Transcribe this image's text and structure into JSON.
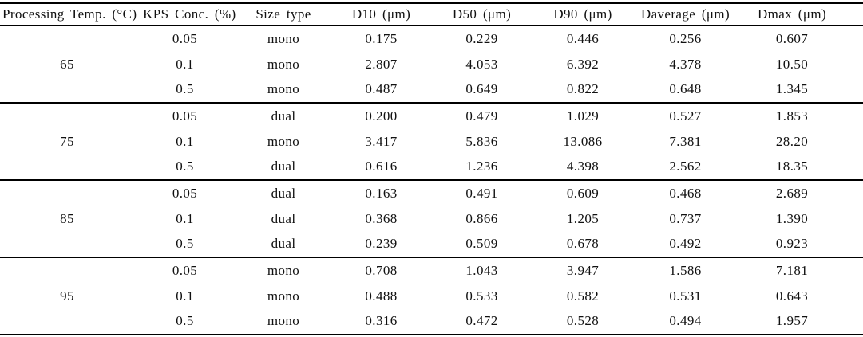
{
  "colors": {
    "background": "#ffffff",
    "text": "#111111",
    "rule": "#000000"
  },
  "table": {
    "columns": [
      "Processing Temp. (°C)",
      "KPS Conc. (%)",
      "Size type",
      "D10 (μm)",
      "D50 (μm)",
      "D90 (μm)",
      "Daverage (μm)",
      "Dmax (μm)"
    ],
    "groups": [
      {
        "temp": "65",
        "rows": [
          {
            "kps": "0.05",
            "size_type": "mono",
            "d10": "0.175",
            "d50": "0.229",
            "d90": "0.446",
            "daverage": "0.256",
            "dmax": "0.607"
          },
          {
            "kps": "0.1",
            "size_type": "mono",
            "d10": "2.807",
            "d50": "4.053",
            "d90": "6.392",
            "daverage": "4.378",
            "dmax": "10.50"
          },
          {
            "kps": "0.5",
            "size_type": "mono",
            "d10": "0.487",
            "d50": "0.649",
            "d90": "0.822",
            "daverage": "0.648",
            "dmax": "1.345"
          }
        ]
      },
      {
        "temp": "75",
        "rows": [
          {
            "kps": "0.05",
            "size_type": "dual",
            "d10": "0.200",
            "d50": "0.479",
            "d90": "1.029",
            "daverage": "0.527",
            "dmax": "1.853"
          },
          {
            "kps": "0.1",
            "size_type": "mono",
            "d10": "3.417",
            "d50": "5.836",
            "d90": "13.086",
            "daverage": "7.381",
            "dmax": "28.20"
          },
          {
            "kps": "0.5",
            "size_type": "dual",
            "d10": "0.616",
            "d50": "1.236",
            "d90": "4.398",
            "daverage": "2.562",
            "dmax": "18.35"
          }
        ]
      },
      {
        "temp": "85",
        "rows": [
          {
            "kps": "0.05",
            "size_type": "dual",
            "d10": "0.163",
            "d50": "0.491",
            "d90": "0.609",
            "daverage": "0.468",
            "dmax": "2.689"
          },
          {
            "kps": "0.1",
            "size_type": "dual",
            "d10": "0.368",
            "d50": "0.866",
            "d90": "1.205",
            "daverage": "0.737",
            "dmax": "1.390"
          },
          {
            "kps": "0.5",
            "size_type": "dual",
            "d10": "0.239",
            "d50": "0.509",
            "d90": "0.678",
            "daverage": "0.492",
            "dmax": "0.923"
          }
        ]
      },
      {
        "temp": "95",
        "rows": [
          {
            "kps": "0.05",
            "size_type": "mono",
            "d10": "0.708",
            "d50": "1.043",
            "d90": "3.947",
            "daverage": "1.586",
            "dmax": "7.181"
          },
          {
            "kps": "0.1",
            "size_type": "mono",
            "d10": "0.488",
            "d50": "0.533",
            "d90": "0.582",
            "daverage": "0.531",
            "dmax": "0.643"
          },
          {
            "kps": "0.5",
            "size_type": "mono",
            "d10": "0.316",
            "d50": "0.472",
            "d90": "0.528",
            "daverage": "0.494",
            "dmax": "1.957"
          }
        ]
      }
    ]
  }
}
